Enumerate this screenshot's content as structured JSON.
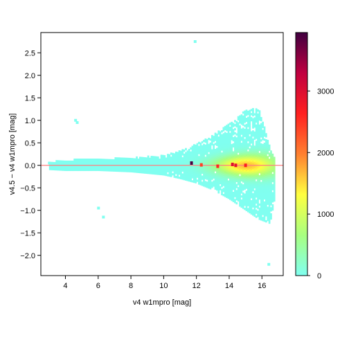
{
  "chart_data": {
    "type": "heatmap",
    "xlabel": "v4 w1mpro [mag]",
    "ylabel": "v4.5 − v4 w1mpro [mag]",
    "xlim": [
      2.5,
      17.3
    ],
    "ylim": [
      -2.45,
      2.95
    ],
    "x_ticks": [
      4,
      6,
      8,
      10,
      12,
      14,
      16
    ],
    "y_ticks": [
      2.5,
      2.0,
      1.5,
      1.0,
      0.5,
      0.0,
      -0.5,
      -1.0,
      -1.5,
      -2.0
    ],
    "x_tick_labels": [
      "4",
      "6",
      "8",
      "10",
      "12",
      "14",
      "16"
    ],
    "y_tick_labels": [
      "2.5",
      "2.0",
      "1.5",
      "1.0",
      "0.5",
      "0.0",
      "−0.5",
      "−1.0",
      "−1.5",
      "−2.0"
    ],
    "reference_line_y": 0.0,
    "reference_line_color": "#ff8080",
    "colorbar": {
      "min": 0,
      "max": 3950,
      "ticks": [
        0,
        1000,
        2000,
        3000
      ],
      "tick_labels": [
        "0",
        "1000",
        "2000",
        "3000"
      ],
      "colors": [
        "#80fff0",
        "#a8ff80",
        "#ffff40",
        "#ff8030",
        "#ff2020",
        "#c00040",
        "#400040"
      ]
    },
    "envelope": [
      {
        "x": 3.0,
        "ymax": 0.05,
        "ymin": -0.1
      },
      {
        "x": 4.0,
        "ymax": 0.1,
        "ymin": -0.12
      },
      {
        "x": 6.0,
        "ymax": 0.12,
        "ymin": -0.12
      },
      {
        "x": 8.0,
        "ymax": 0.15,
        "ymin": -0.15
      },
      {
        "x": 10.0,
        "ymax": 0.2,
        "ymin": -0.22
      },
      {
        "x": 11.0,
        "ymax": 0.3,
        "ymin": -0.3
      },
      {
        "x": 12.0,
        "ymax": 0.45,
        "ymin": -0.4
      },
      {
        "x": 13.0,
        "ymax": 0.65,
        "ymin": -0.55
      },
      {
        "x": 14.0,
        "ymax": 0.9,
        "ymin": -0.75
      },
      {
        "x": 15.0,
        "ymax": 1.2,
        "ymin": -1.0
      },
      {
        "x": 15.8,
        "ymax": 1.25,
        "ymin": -1.2
      },
      {
        "x": 16.5,
        "ymax": 0.4,
        "ymin": -1.3
      },
      {
        "x": 16.8,
        "ymax": 0.1,
        "ymin": -0.7
      }
    ],
    "hot_spots": [
      {
        "x": 11.7,
        "y": 0.05,
        "count": 3900
      },
      {
        "x": 14.2,
        "y": 0.02,
        "count": 3000
      },
      {
        "x": 14.4,
        "y": 0.0,
        "count": 2900
      },
      {
        "x": 15.0,
        "y": 0.0,
        "count": 2700
      },
      {
        "x": 13.3,
        "y": -0.02,
        "count": 2600
      },
      {
        "x": 12.3,
        "y": 0.01,
        "count": 2400
      }
    ],
    "outliers": [
      {
        "x": 11.9,
        "y": 2.75
      },
      {
        "x": 6.0,
        "y": -0.95
      },
      {
        "x": 6.3,
        "y": -1.15
      },
      {
        "x": 16.4,
        "y": -2.2
      },
      {
        "x": 4.7,
        "y": 0.95
      },
      {
        "x": 4.6,
        "y": 1.0
      },
      {
        "x": 3.0,
        "y": 0.05
      }
    ]
  }
}
